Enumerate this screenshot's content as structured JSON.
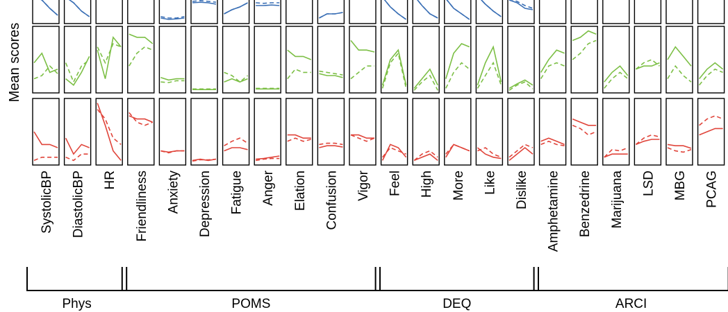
{
  "chart_data": {
    "type": "line",
    "ylabel": "Mean scores",
    "colors": {
      "blue": "#3a6fb5",
      "green": "#7cbf45",
      "red": "#e0443a",
      "frame": "#000000"
    },
    "line_styles": [
      "solid",
      "dashed"
    ],
    "rows": [
      "blue",
      "green",
      "red"
    ],
    "measures": [
      "SystolicBP",
      "DiastolicBP",
      "HR",
      "Friendliness",
      "Anxiety",
      "Depression",
      "Fatigue",
      "Anger",
      "Elation",
      "Confusion",
      "Vigor",
      "Feel",
      "High",
      "More",
      "Like",
      "Dislike",
      "Amphetamine",
      "Benzedrine",
      "Marijuana",
      "LSD",
      "MBG",
      "PCAG"
    ],
    "groups": [
      {
        "label": "Phys",
        "measures": [
          "SystolicBP",
          "DiastolicBP",
          "HR"
        ]
      },
      {
        "label": "POMS",
        "measures": [
          "Friendliness",
          "Anxiety",
          "Depression",
          "Fatigue",
          "Anger",
          "Elation",
          "Confusion",
          "Vigor"
        ]
      },
      {
        "label": "DEQ",
        "measures": [
          "Feel",
          "High",
          "More",
          "Like",
          "Dislike"
        ]
      },
      {
        "label": "ARCI",
        "measures": [
          "Amphetamine",
          "Benzedrine",
          "Marijuana",
          "LSD",
          "MBG",
          "PCAG"
        ]
      }
    ],
    "series": {
      "blue": {
        "SystolicBP": [
          [
            0.05,
            0.2,
            0.5,
            0.75
          ],
          [
            0.05,
            0.2,
            0.5,
            0.75
          ]
        ],
        "DiastolicBP": [
          [
            0.1,
            0.3,
            0.6,
            0.8
          ],
          [
            0.1,
            0.3,
            0.6,
            0.8
          ]
        ],
        "HR": [],
        "Friendliness": [],
        "Anxiety": [
          [
            0.85,
            0.9,
            0.88,
            0.85
          ],
          [
            0.8,
            0.85,
            0.85,
            0.8
          ]
        ],
        "Depression": [
          [
            0.3,
            0.28,
            0.3,
            0.35
          ],
          [
            0.25,
            0.22,
            0.25,
            0.28
          ]
        ],
        "Fatigue": [
          [
            0.7,
            0.55,
            0.45,
            0.3
          ],
          [
            0.7,
            0.55,
            0.45,
            0.3
          ]
        ],
        "Anger": [
          [
            0.4,
            0.4,
            0.38,
            0.4
          ],
          [
            0.3,
            0.32,
            0.3,
            0.3
          ]
        ],
        "Elation": [],
        "Confusion": [
          [
            0.85,
            0.7,
            0.7,
            0.65
          ],
          [
            0.85,
            0.7,
            0.7,
            0.65
          ]
        ],
        "Vigor": [],
        "Feel": [
          [
            0.1,
            0.45,
            0.7,
            0.9
          ],
          [
            0.1,
            0.45,
            0.7,
            0.9
          ]
        ],
        "High": [
          [
            0.05,
            0.4,
            0.7,
            0.85
          ],
          [
            0.05,
            0.4,
            0.7,
            0.85
          ]
        ],
        "More": [
          [
            0.15,
            0.5,
            0.7,
            0.9
          ],
          [
            0.15,
            0.5,
            0.7,
            0.9
          ]
        ],
        "Like": [
          [
            0.05,
            0.35,
            0.6,
            0.8
          ],
          [
            0.05,
            0.35,
            0.6,
            0.8
          ]
        ],
        "Dislike": [
          [
            0.2,
            0.3,
            0.5,
            0.55
          ],
          [
            0.15,
            0.25,
            0.4,
            0.5
          ]
        ],
        "Amphetamine": [],
        "Benzedrine": [],
        "Marijuana": [],
        "LSD": [],
        "MBG": [],
        "PCAG": []
      },
      "green": {
        "SystolicBP": [
          [
            0.55,
            0.4,
            0.7,
            0.65
          ],
          [
            0.8,
            0.75,
            0.6,
            0.72
          ]
        ],
        "DiastolicBP": [
          [
            0.8,
            0.9,
            0.7,
            0.45
          ],
          [
            0.55,
            0.85,
            0.6,
            0.5
          ]
        ],
        "HR": [
          [
            0.35,
            0.8,
            0.15,
            0.3
          ],
          [
            0.3,
            0.55,
            0.25,
            0.3
          ]
        ],
        "Friendliness": [
          [
            0.1,
            0.15,
            0.15,
            0.25
          ],
          [
            0.6,
            0.4,
            0.3,
            0.35
          ]
        ],
        "Anxiety": [
          [
            0.78,
            0.82,
            0.8,
            0.8
          ],
          [
            0.85,
            0.86,
            0.83,
            0.83
          ]
        ],
        "Depression": [
          [
            0.97,
            0.97,
            0.97,
            0.97
          ],
          [
            0.96,
            0.96,
            0.96,
            0.96
          ]
        ],
        "Fatigue": [
          [
            0.85,
            0.8,
            0.85,
            0.8
          ],
          [
            0.7,
            0.75,
            0.85,
            0.75
          ]
        ],
        "Anger": [
          [
            0.96,
            0.96,
            0.96,
            0.96
          ],
          [
            0.95,
            0.95,
            0.95,
            0.95
          ]
        ],
        "Elation": [
          [
            0.35,
            0.45,
            0.45,
            0.5
          ],
          [
            0.8,
            0.65,
            0.7,
            0.7
          ]
        ],
        "Confusion": [
          [
            0.72,
            0.75,
            0.75,
            0.78
          ],
          [
            0.68,
            0.7,
            0.72,
            0.74
          ]
        ],
        "Vigor": [
          [
            0.2,
            0.35,
            0.35,
            0.38
          ],
          [
            0.8,
            0.7,
            0.6,
            0.6
          ]
        ],
        "Feel": [
          [
            0.9,
            0.5,
            0.35,
            0.9
          ],
          [
            0.95,
            0.55,
            0.4,
            0.95
          ]
        ],
        "High": [
          [
            0.95,
            0.8,
            0.65,
            0.9
          ],
          [
            0.98,
            0.85,
            0.75,
            0.98
          ]
        ],
        "More": [
          [
            0.8,
            0.4,
            0.25,
            0.3
          ],
          [
            0.95,
            0.7,
            0.55,
            0.65
          ]
        ],
        "Like": [
          [
            0.9,
            0.55,
            0.3,
            0.85
          ],
          [
            0.95,
            0.75,
            0.55,
            0.9
          ]
        ],
        "Dislike": [
          [
            0.95,
            0.88,
            0.82,
            0.9
          ],
          [
            0.98,
            0.9,
            0.85,
            0.96
          ]
        ],
        "Amphetamine": [
          [
            0.7,
            0.5,
            0.35,
            0.4
          ],
          [
            0.8,
            0.6,
            0.55,
            0.6
          ]
        ],
        "Benzedrine": [
          [
            0.2,
            0.15,
            0.05,
            0.1
          ],
          [
            0.5,
            0.4,
            0.25,
            0.2
          ]
        ],
        "Marijuana": [
          [
            0.85,
            0.7,
            0.6,
            0.75
          ],
          [
            0.95,
            0.8,
            0.7,
            0.8
          ]
        ],
        "LSD": [
          [
            0.65,
            0.6,
            0.6,
            0.55
          ],
          [
            0.65,
            0.55,
            0.5,
            0.6
          ]
        ],
        "MBG": [
          [
            0.5,
            0.3,
            0.45,
            0.6
          ],
          [
            0.8,
            0.6,
            0.75,
            0.85
          ]
        ],
        "PCAG": [
          [
            0.8,
            0.65,
            0.55,
            0.65
          ],
          [
            0.9,
            0.75,
            0.65,
            0.7
          ]
        ]
      },
      "red": {
        "SystolicBP": [
          [
            0.5,
            0.7,
            0.7,
            0.75
          ],
          [
            0.95,
            0.9,
            0.9,
            0.9
          ]
        ],
        "DiastolicBP": [
          [
            0.6,
            0.85,
            0.7,
            0.75
          ],
          [
            0.9,
            0.95,
            0.85,
            0.85
          ]
        ],
        "HR": [
          [
            0.05,
            0.4,
            0.8,
            0.95
          ],
          [
            0.15,
            0.3,
            0.6,
            0.7
          ]
        ],
        "Friendliness": [
          [
            0.25,
            0.3,
            0.3,
            0.35
          ],
          [
            0.2,
            0.35,
            0.4,
            0.35
          ]
        ],
        "Anxiety": [
          [
            0.8,
            0.82,
            0.8,
            0.8
          ],
          [
            0.8,
            0.83,
            0.8,
            0.8
          ]
        ],
        "Depression": [
          [
            0.95,
            0.93,
            0.95,
            0.93
          ],
          [
            0.96,
            0.94,
            0.94,
            0.93
          ]
        ],
        "Fatigue": [
          [
            0.8,
            0.75,
            0.75,
            0.78
          ],
          [
            0.72,
            0.65,
            0.6,
            0.68
          ]
        ],
        "Anger": [
          [
            0.93,
            0.92,
            0.9,
            0.88
          ],
          [
            0.95,
            0.93,
            0.92,
            0.92
          ]
        ],
        "Elation": [
          [
            0.55,
            0.55,
            0.6,
            0.6
          ],
          [
            0.65,
            0.6,
            0.65,
            0.62
          ]
        ],
        "Confusion": [
          [
            0.75,
            0.72,
            0.72,
            0.74
          ],
          [
            0.7,
            0.68,
            0.68,
            0.7
          ]
        ],
        "Vigor": [
          [
            0.55,
            0.55,
            0.6,
            0.6
          ],
          [
            0.55,
            0.6,
            0.65,
            0.6
          ]
        ],
        "Feel": [
          [
            0.95,
            0.7,
            0.75,
            0.9
          ],
          [
            0.9,
            0.75,
            0.8,
            0.85
          ]
        ],
        "High": [
          [
            0.95,
            0.9,
            0.85,
            0.95
          ],
          [
            0.95,
            0.85,
            0.8,
            0.9
          ]
        ],
        "More": [
          [
            0.9,
            0.7,
            0.75,
            0.8
          ],
          [
            0.85,
            0.7,
            0.75,
            0.8
          ]
        ],
        "Like": [
          [
            0.75,
            0.85,
            0.9,
            0.92
          ],
          [
            0.8,
            0.75,
            0.85,
            0.9
          ]
        ],
        "Dislike": [
          [
            0.95,
            0.85,
            0.75,
            0.85
          ],
          [
            0.9,
            0.8,
            0.7,
            0.75
          ]
        ],
        "Amphetamine": [
          [
            0.65,
            0.6,
            0.65,
            0.7
          ],
          [
            0.7,
            0.65,
            0.7,
            0.72
          ]
        ],
        "Benzedrine": [
          [
            0.3,
            0.35,
            0.4,
            0.4
          ],
          [
            0.4,
            0.45,
            0.55,
            0.5
          ]
        ],
        "Marijuana": [
          [
            0.9,
            0.85,
            0.85,
            0.85
          ],
          [
            0.9,
            0.78,
            0.8,
            0.75
          ]
        ],
        "LSD": [
          [
            0.7,
            0.65,
            0.62,
            0.62
          ],
          [
            0.7,
            0.6,
            0.55,
            0.58
          ]
        ],
        "MBG": [
          [
            0.7,
            0.72,
            0.72,
            0.76
          ],
          [
            0.75,
            0.8,
            0.82,
            0.78
          ]
        ],
        "PCAG": [
          [
            0.55,
            0.5,
            0.45,
            0.45
          ],
          [
            0.4,
            0.3,
            0.25,
            0.3
          ]
        ]
      }
    }
  }
}
